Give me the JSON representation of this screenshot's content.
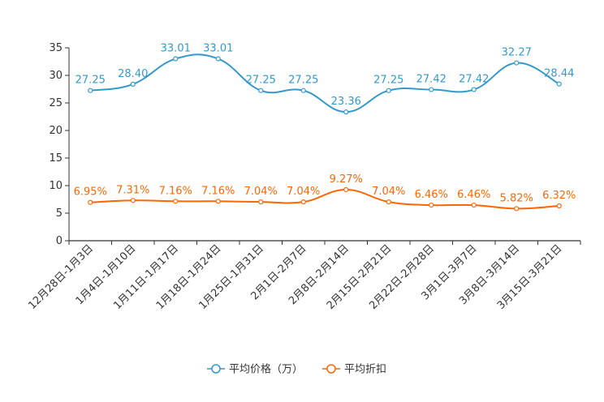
{
  "chart_data": {
    "type": "line",
    "title": "",
    "xlabel": "",
    "ylabel": "",
    "ylim": [
      0,
      35
    ],
    "yticks": [
      0,
      5,
      10,
      15,
      20,
      25,
      30,
      35
    ],
    "grid": false,
    "legend_position": "bottom-center",
    "categories": [
      "12月28日-1月3日",
      "1月4日-1月10日",
      "1月11日-1月17日",
      "1月18日-1月24日",
      "1月25日-1月31日",
      "2月1日-2月7日",
      "2月8日-2月14日",
      "2月15日-2月21日",
      "2月22日-2月28日",
      "3月1日-3月7日",
      "3月8日-3月14日",
      "3月15日-3月21日"
    ],
    "series": [
      {
        "name": "平均价格（万）",
        "color": "#3399cc",
        "values": [
          27.25,
          28.4,
          33.01,
          33.01,
          27.25,
          27.25,
          23.36,
          27.25,
          27.42,
          27.42,
          32.27,
          28.44
        ],
        "labels": [
          "27.25",
          "28.40",
          "33.01",
          "33.01",
          "27.25",
          "27.25",
          "23.36",
          "27.25",
          "27.42",
          "27.42",
          "32.27",
          "28.44"
        ]
      },
      {
        "name": "平均折扣",
        "color": "#ff6600",
        "values": [
          6.95,
          7.31,
          7.16,
          7.16,
          7.04,
          7.04,
          9.27,
          7.04,
          6.46,
          6.46,
          5.82,
          6.32
        ],
        "labels": [
          "6.95%",
          "7.31%",
          "7.16%",
          "7.16%",
          "7.04%",
          "7.04%",
          "9.27%",
          "7.04%",
          "6.46%",
          "6.46%",
          "5.82%",
          "6.32%"
        ]
      }
    ]
  }
}
